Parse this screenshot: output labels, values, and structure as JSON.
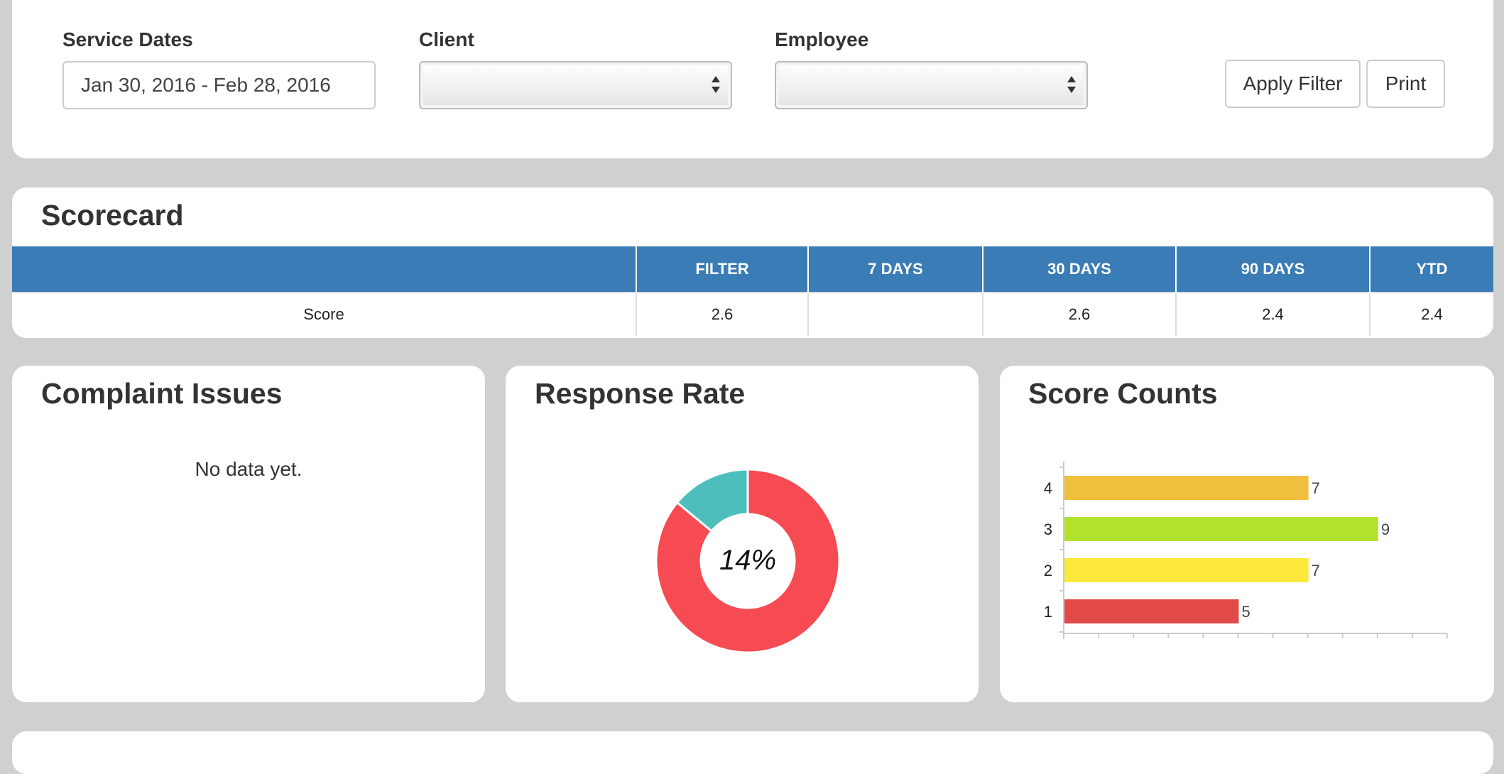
{
  "filters": {
    "service_dates_label": "Service Dates",
    "service_dates_value": "Jan 30, 2016 - Feb 28, 2016",
    "client_label": "Client",
    "client_value": "",
    "employee_label": "Employee",
    "employee_value": "",
    "apply_filter_label": "Apply Filter",
    "print_label": "Print"
  },
  "scorecard": {
    "title": "Scorecard",
    "columns": [
      "",
      "FILTER",
      "7 DAYS",
      "30 DAYS",
      "90 DAYS",
      "YTD"
    ],
    "rows": [
      {
        "label": "Score",
        "values": [
          "2.6",
          "",
          "2.6",
          "2.4",
          "2.4"
        ]
      }
    ],
    "header_color": "#3a7cb6"
  },
  "complaint_issues": {
    "title": "Complaint Issues",
    "empty_message": "No data yet."
  },
  "response_rate": {
    "title": "Response Rate",
    "center_label": "14%",
    "responded_fraction": 0.14,
    "colors": {
      "responded": "#4cbfbc",
      "not_responded": "#f64b52"
    }
  },
  "score_counts": {
    "title": "Score Counts",
    "chart_data": {
      "type": "bar",
      "orientation": "horizontal",
      "title": "Score Counts",
      "categories": [
        "4",
        "3",
        "2",
        "1"
      ],
      "values": [
        7,
        9,
        7,
        5
      ],
      "colors": [
        "#efc03e",
        "#b3e22d",
        "#fde83c",
        "#e24a4a"
      ],
      "xlim": [
        0,
        11
      ],
      "xlabel": "",
      "ylabel": "",
      "grid": false
    }
  }
}
